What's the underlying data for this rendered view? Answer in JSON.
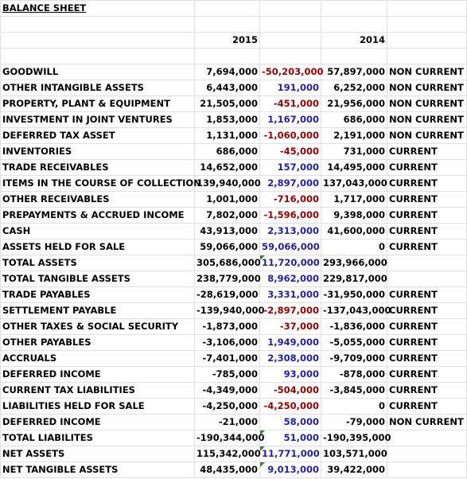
{
  "sheet": {
    "title": "BALANCE SHEET",
    "years": {
      "y1": "2015",
      "y2": "2014"
    },
    "rows": [
      {
        "label": "GOODWILL",
        "y2015": "7,694,000",
        "change": "-50,203,000",
        "y2014": "57,897,000",
        "cls": "NON CURRENT",
        "sign": "neg"
      },
      {
        "label": "OTHER INTANGIBLE ASSETS",
        "y2015": "6,443,000",
        "change": "191,000",
        "y2014": "6,252,000",
        "cls": "NON CURRENT",
        "sign": "pos"
      },
      {
        "label": "PROPERTY, PLANT & EQUIPMENT",
        "y2015": "21,505,000",
        "change": "-451,000",
        "y2014": "21,956,000",
        "cls": "NON CURRENT",
        "sign": "neg"
      },
      {
        "label": "INVESTMENT IN JOINT VENTURES",
        "y2015": "1,853,000",
        "change": "1,167,000",
        "y2014": "686,000",
        "cls": "NON CURRENT",
        "sign": "pos"
      },
      {
        "label": "DEFERRED TAX ASSET",
        "y2015": "1,131,000",
        "change": "-1,060,000",
        "y2014": "2,191,000",
        "cls": "NON CURRENT",
        "sign": "neg"
      },
      {
        "label": "INVENTORIES",
        "y2015": "686,000",
        "change": "-45,000",
        "y2014": "731,000",
        "cls": "CURRENT",
        "sign": "neg"
      },
      {
        "label": "TRADE RECEIVABLES",
        "y2015": "14,652,000",
        "change": "157,000",
        "y2014": "14,495,000",
        "cls": "CURRENT",
        "sign": "pos"
      },
      {
        "label": "ITEMS IN THE COURSE OF COLLECTION",
        "y2015": "139,940,000",
        "change": "2,897,000",
        "y2014": "137,043,000",
        "cls": "CURRENT",
        "sign": "pos"
      },
      {
        "label": "OTHER RECEIVABLES",
        "y2015": "1,001,000",
        "change": "-716,000",
        "y2014": "1,717,000",
        "cls": "CURRENT",
        "sign": "neg"
      },
      {
        "label": "PREPAYMENTS & ACCRUED INCOME",
        "y2015": "7,802,000",
        "change": "-1,596,000",
        "y2014": "9,398,000",
        "cls": "CURRENT",
        "sign": "neg"
      },
      {
        "label": "CASH",
        "y2015": "43,913,000",
        "change": "2,313,000",
        "y2014": "41,600,000",
        "cls": "CURRENT",
        "sign": "pos"
      },
      {
        "label": "ASSETS HELD FOR SALE",
        "y2015": "59,066,000",
        "change": "59,066,000",
        "y2014": "0",
        "cls": "CURRENT",
        "sign": "pos"
      },
      {
        "label": "TOTAL ASSETS",
        "y2015": "305,686,000",
        "change": "11,720,000",
        "y2014": "293,966,000",
        "cls": "",
        "sign": "pos",
        "tri": true
      },
      {
        "label": "TOTAL TANGIBLE ASSETS",
        "y2015": "238,779,000",
        "change": "8,962,000",
        "y2014": "229,817,000",
        "cls": "",
        "sign": "pos"
      },
      {
        "label": "TRADE PAYABLES",
        "y2015": "-28,619,000",
        "change": "3,331,000",
        "y2014": "-31,950,000",
        "cls": "CURRENT",
        "sign": "pos"
      },
      {
        "label": "SETTLEMENT PAYABLE",
        "y2015": "-139,940,000",
        "change": "-2,897,000",
        "y2014": "-137,043,000",
        "cls": "CURRENT",
        "sign": "neg"
      },
      {
        "label": "OTHER TAXES & SOCIAL SECURITY",
        "y2015": "-1,873,000",
        "change": "-37,000",
        "y2014": "-1,836,000",
        "cls": "CURRENT",
        "sign": "neg"
      },
      {
        "label": "OTHER PAYABLES",
        "y2015": "-3,106,000",
        "change": "1,949,000",
        "y2014": "-5,055,000",
        "cls": "CURRENT",
        "sign": "pos"
      },
      {
        "label": "ACCRUALS",
        "y2015": "-7,401,000",
        "change": "2,308,000",
        "y2014": "-9,709,000",
        "cls": "CURRENT",
        "sign": "pos"
      },
      {
        "label": "DEFERRED INCOME",
        "y2015": "-785,000",
        "change": "93,000",
        "y2014": "-878,000",
        "cls": "CURRENT",
        "sign": "pos"
      },
      {
        "label": "CURRENT TAX LIABILITIES",
        "y2015": "-4,349,000",
        "change": "-504,000",
        "y2014": "-3,845,000",
        "cls": "CURRENT",
        "sign": "neg"
      },
      {
        "label": "LIABILITIES HELD FOR SALE",
        "y2015": "-4,250,000",
        "change": "-4,250,000",
        "y2014": "0",
        "cls": "CURRENT",
        "sign": "neg"
      },
      {
        "label": "DEFERRED INCOME",
        "y2015": "-21,000",
        "change": "58,000",
        "y2014": "-79,000",
        "cls": "NON CURRENT",
        "sign": "pos"
      },
      {
        "label": "TOTAL LIABILITES",
        "y2015": "-190,344,000",
        "change": "51,000",
        "y2014": "-190,395,000",
        "cls": "",
        "sign": "pos",
        "tri": true
      },
      {
        "label": "NET ASSETS",
        "y2015": "115,342,000",
        "change": "11,771,000",
        "y2014": "103,571,000",
        "cls": "",
        "sign": "pos",
        "tri": true
      },
      {
        "label": "NET TANGIBLE ASSETS",
        "y2015": "48,435,000",
        "change": "9,013,000",
        "y2014": "39,422,000",
        "cls": "",
        "sign": "pos",
        "tri": true
      }
    ]
  }
}
